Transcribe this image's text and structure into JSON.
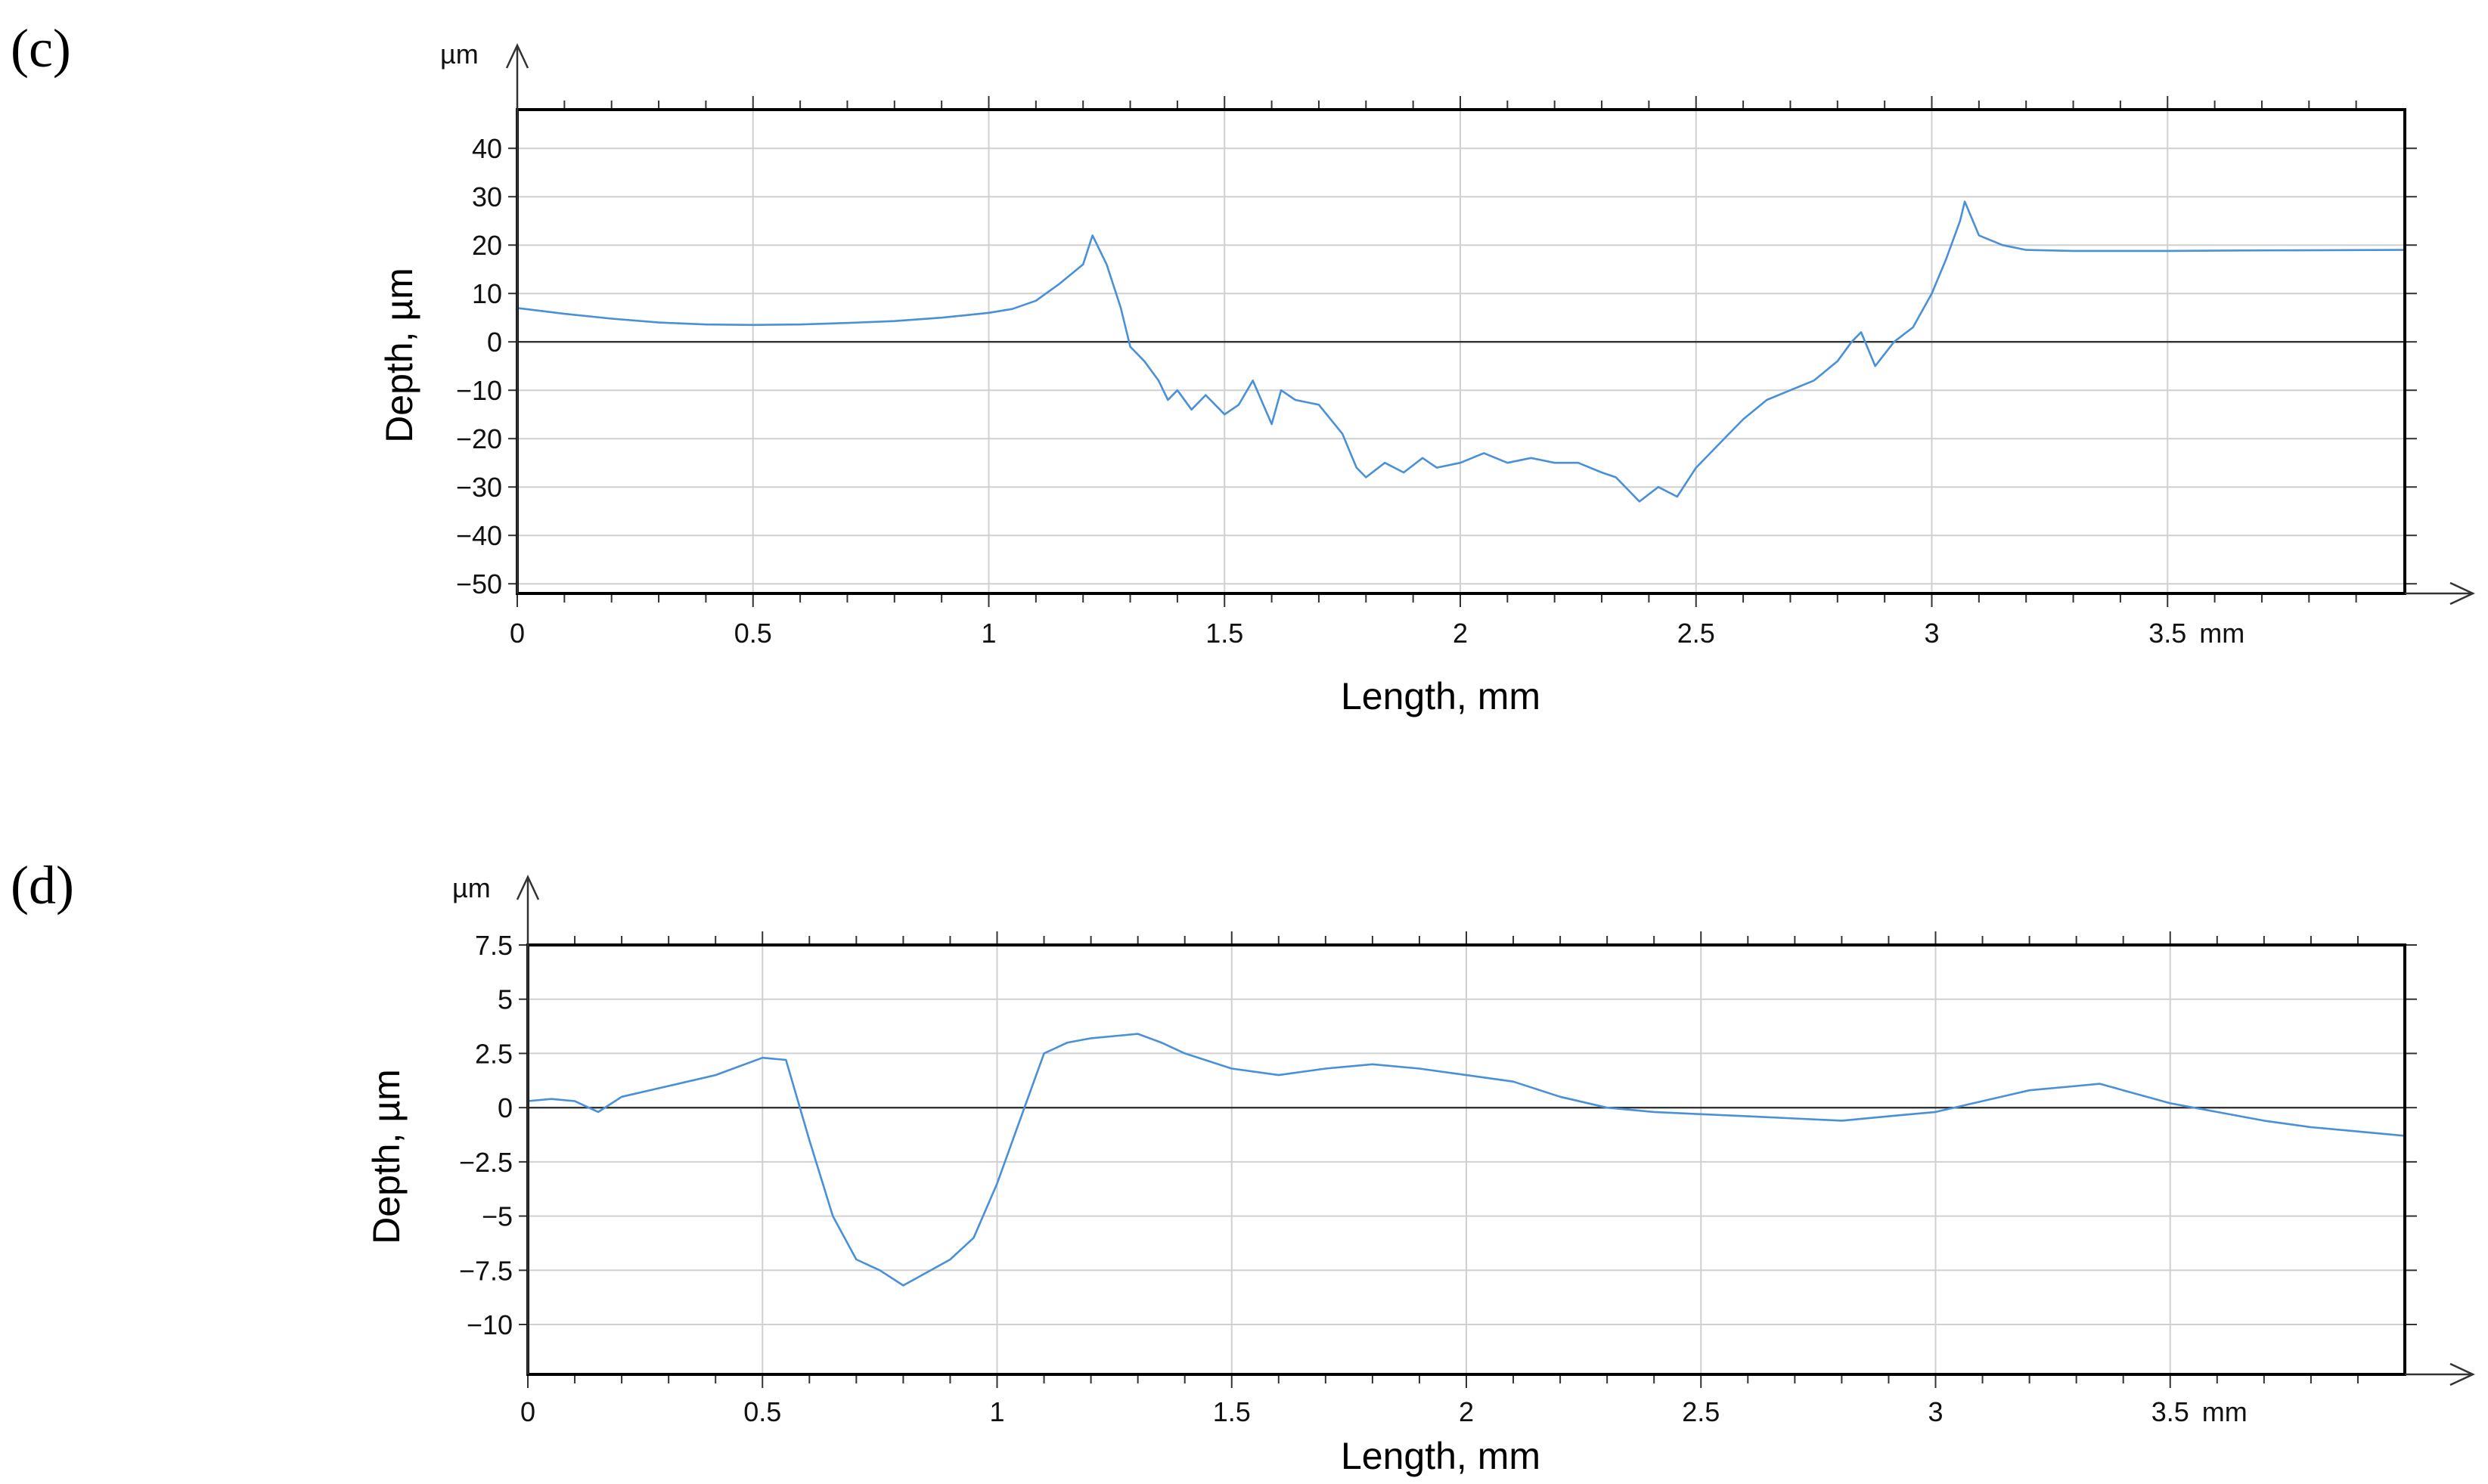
{
  "chart_data": [
    {
      "panel_label": "(c)",
      "type": "line",
      "y_unit": "µm",
      "x_unit": "mm",
      "xlabel": "Length, mm",
      "ylabel": "Depth, µm",
      "xlim": [
        0,
        4.0
      ],
      "ylim": [
        -52,
        48
      ],
      "x_ticks": [
        0,
        0.5,
        1,
        1.5,
        2,
        2.5,
        3,
        3.5
      ],
      "x_tick_labels": [
        "0",
        "0.5",
        "1",
        "1.5",
        "2",
        "2.5",
        "3",
        "3.5"
      ],
      "y_ticks": [
        40,
        30,
        20,
        10,
        0,
        -10,
        -20,
        -30,
        -40,
        -50
      ],
      "y_tick_labels": [
        "40",
        "30",
        "20",
        "10",
        "0",
        "−10",
        "−20",
        "−30",
        "−40",
        "−50"
      ],
      "grid": true,
      "series": [
        {
          "color": "#4a90d9",
          "x": [
            0,
            0.1,
            0.2,
            0.3,
            0.4,
            0.5,
            0.6,
            0.7,
            0.8,
            0.9,
            1.0,
            1.05,
            1.1,
            1.15,
            1.2,
            1.22,
            1.25,
            1.28,
            1.3,
            1.33,
            1.36,
            1.38,
            1.4,
            1.43,
            1.46,
            1.5,
            1.53,
            1.56,
            1.6,
            1.62,
            1.65,
            1.7,
            1.75,
            1.78,
            1.8,
            1.84,
            1.88,
            1.92,
            1.95,
            2.0,
            2.05,
            2.1,
            2.15,
            2.2,
            2.25,
            2.3,
            2.33,
            2.36,
            2.38,
            2.42,
            2.46,
            2.5,
            2.55,
            2.6,
            2.65,
            2.7,
            2.75,
            2.8,
            2.83,
            2.85,
            2.88,
            2.92,
            2.96,
            3.0,
            3.03,
            3.06,
            3.07,
            3.1,
            3.15,
            3.2,
            3.3,
            3.5,
            3.7,
            4.0
          ],
          "y": [
            7,
            5.8,
            4.8,
            4,
            3.6,
            3.5,
            3.6,
            3.9,
            4.3,
            5,
            6,
            6.8,
            8.5,
            12,
            16,
            22,
            16,
            7,
            -1,
            -4,
            -8,
            -12,
            -10,
            -14,
            -11,
            -15,
            -13,
            -8,
            -17,
            -10,
            -12,
            -13,
            -19,
            -26,
            -28,
            -25,
            -27,
            -24,
            -26,
            -25,
            -23,
            -25,
            -24,
            -25,
            -25,
            -27,
            -28,
            -31,
            -33,
            -30,
            -32,
            -26,
            -21,
            -16,
            -12,
            -10,
            -8,
            -4,
            0,
            2,
            -5,
            0,
            3,
            10,
            17,
            25,
            29,
            22,
            20,
            19,
            18.8,
            18.8,
            18.9,
            19
          ]
        }
      ]
    },
    {
      "panel_label": "(d)",
      "type": "line",
      "y_unit": "µm",
      "x_unit": "mm",
      "xlabel": "Length, mm",
      "ylabel": "Depth, µm",
      "xlim": [
        0,
        4.0
      ],
      "ylim": [
        -12.3,
        7.5
      ],
      "x_ticks": [
        0,
        0.5,
        1,
        1.5,
        2,
        2.5,
        3,
        3.5
      ],
      "x_tick_labels": [
        "0",
        "0.5",
        "1",
        "1.5",
        "2",
        "2.5",
        "3",
        "3.5"
      ],
      "y_ticks": [
        7.5,
        5,
        2.5,
        0,
        -2.5,
        -5,
        -7.5,
        -10
      ],
      "y_tick_labels": [
        "7.5",
        "5",
        "2.5",
        "0",
        "−2.5",
        "−5",
        "−7.5",
        "−10"
      ],
      "grid": true,
      "series": [
        {
          "color": "#4a90d9",
          "x": [
            0,
            0.05,
            0.1,
            0.15,
            0.2,
            0.3,
            0.4,
            0.5,
            0.55,
            0.6,
            0.65,
            0.7,
            0.75,
            0.8,
            0.85,
            0.9,
            0.95,
            1.0,
            1.05,
            1.1,
            1.15,
            1.2,
            1.25,
            1.3,
            1.35,
            1.4,
            1.5,
            1.6,
            1.7,
            1.8,
            1.9,
            2.0,
            2.1,
            2.2,
            2.3,
            2.4,
            2.5,
            2.6,
            2.7,
            2.8,
            2.9,
            3.0,
            3.1,
            3.2,
            3.3,
            3.35,
            3.4,
            3.5,
            3.6,
            3.7,
            3.8,
            3.9,
            4.0
          ],
          "y": [
            0.3,
            0.4,
            0.3,
            -0.2,
            0.5,
            1.0,
            1.5,
            2.3,
            2.2,
            -1.5,
            -5,
            -7,
            -7.5,
            -8.2,
            -7.6,
            -7,
            -6,
            -3.5,
            -0.5,
            2.5,
            3.0,
            3.2,
            3.3,
            3.4,
            3.0,
            2.5,
            1.8,
            1.5,
            1.8,
            2.0,
            1.8,
            1.5,
            1.2,
            0.5,
            0,
            -0.2,
            -0.3,
            -0.4,
            -0.5,
            -0.6,
            -0.4,
            -0.2,
            0.3,
            0.8,
            1.0,
            1.1,
            0.8,
            0.2,
            -0.2,
            -0.6,
            -0.9,
            -1.1,
            -1.3
          ]
        }
      ]
    }
  ]
}
